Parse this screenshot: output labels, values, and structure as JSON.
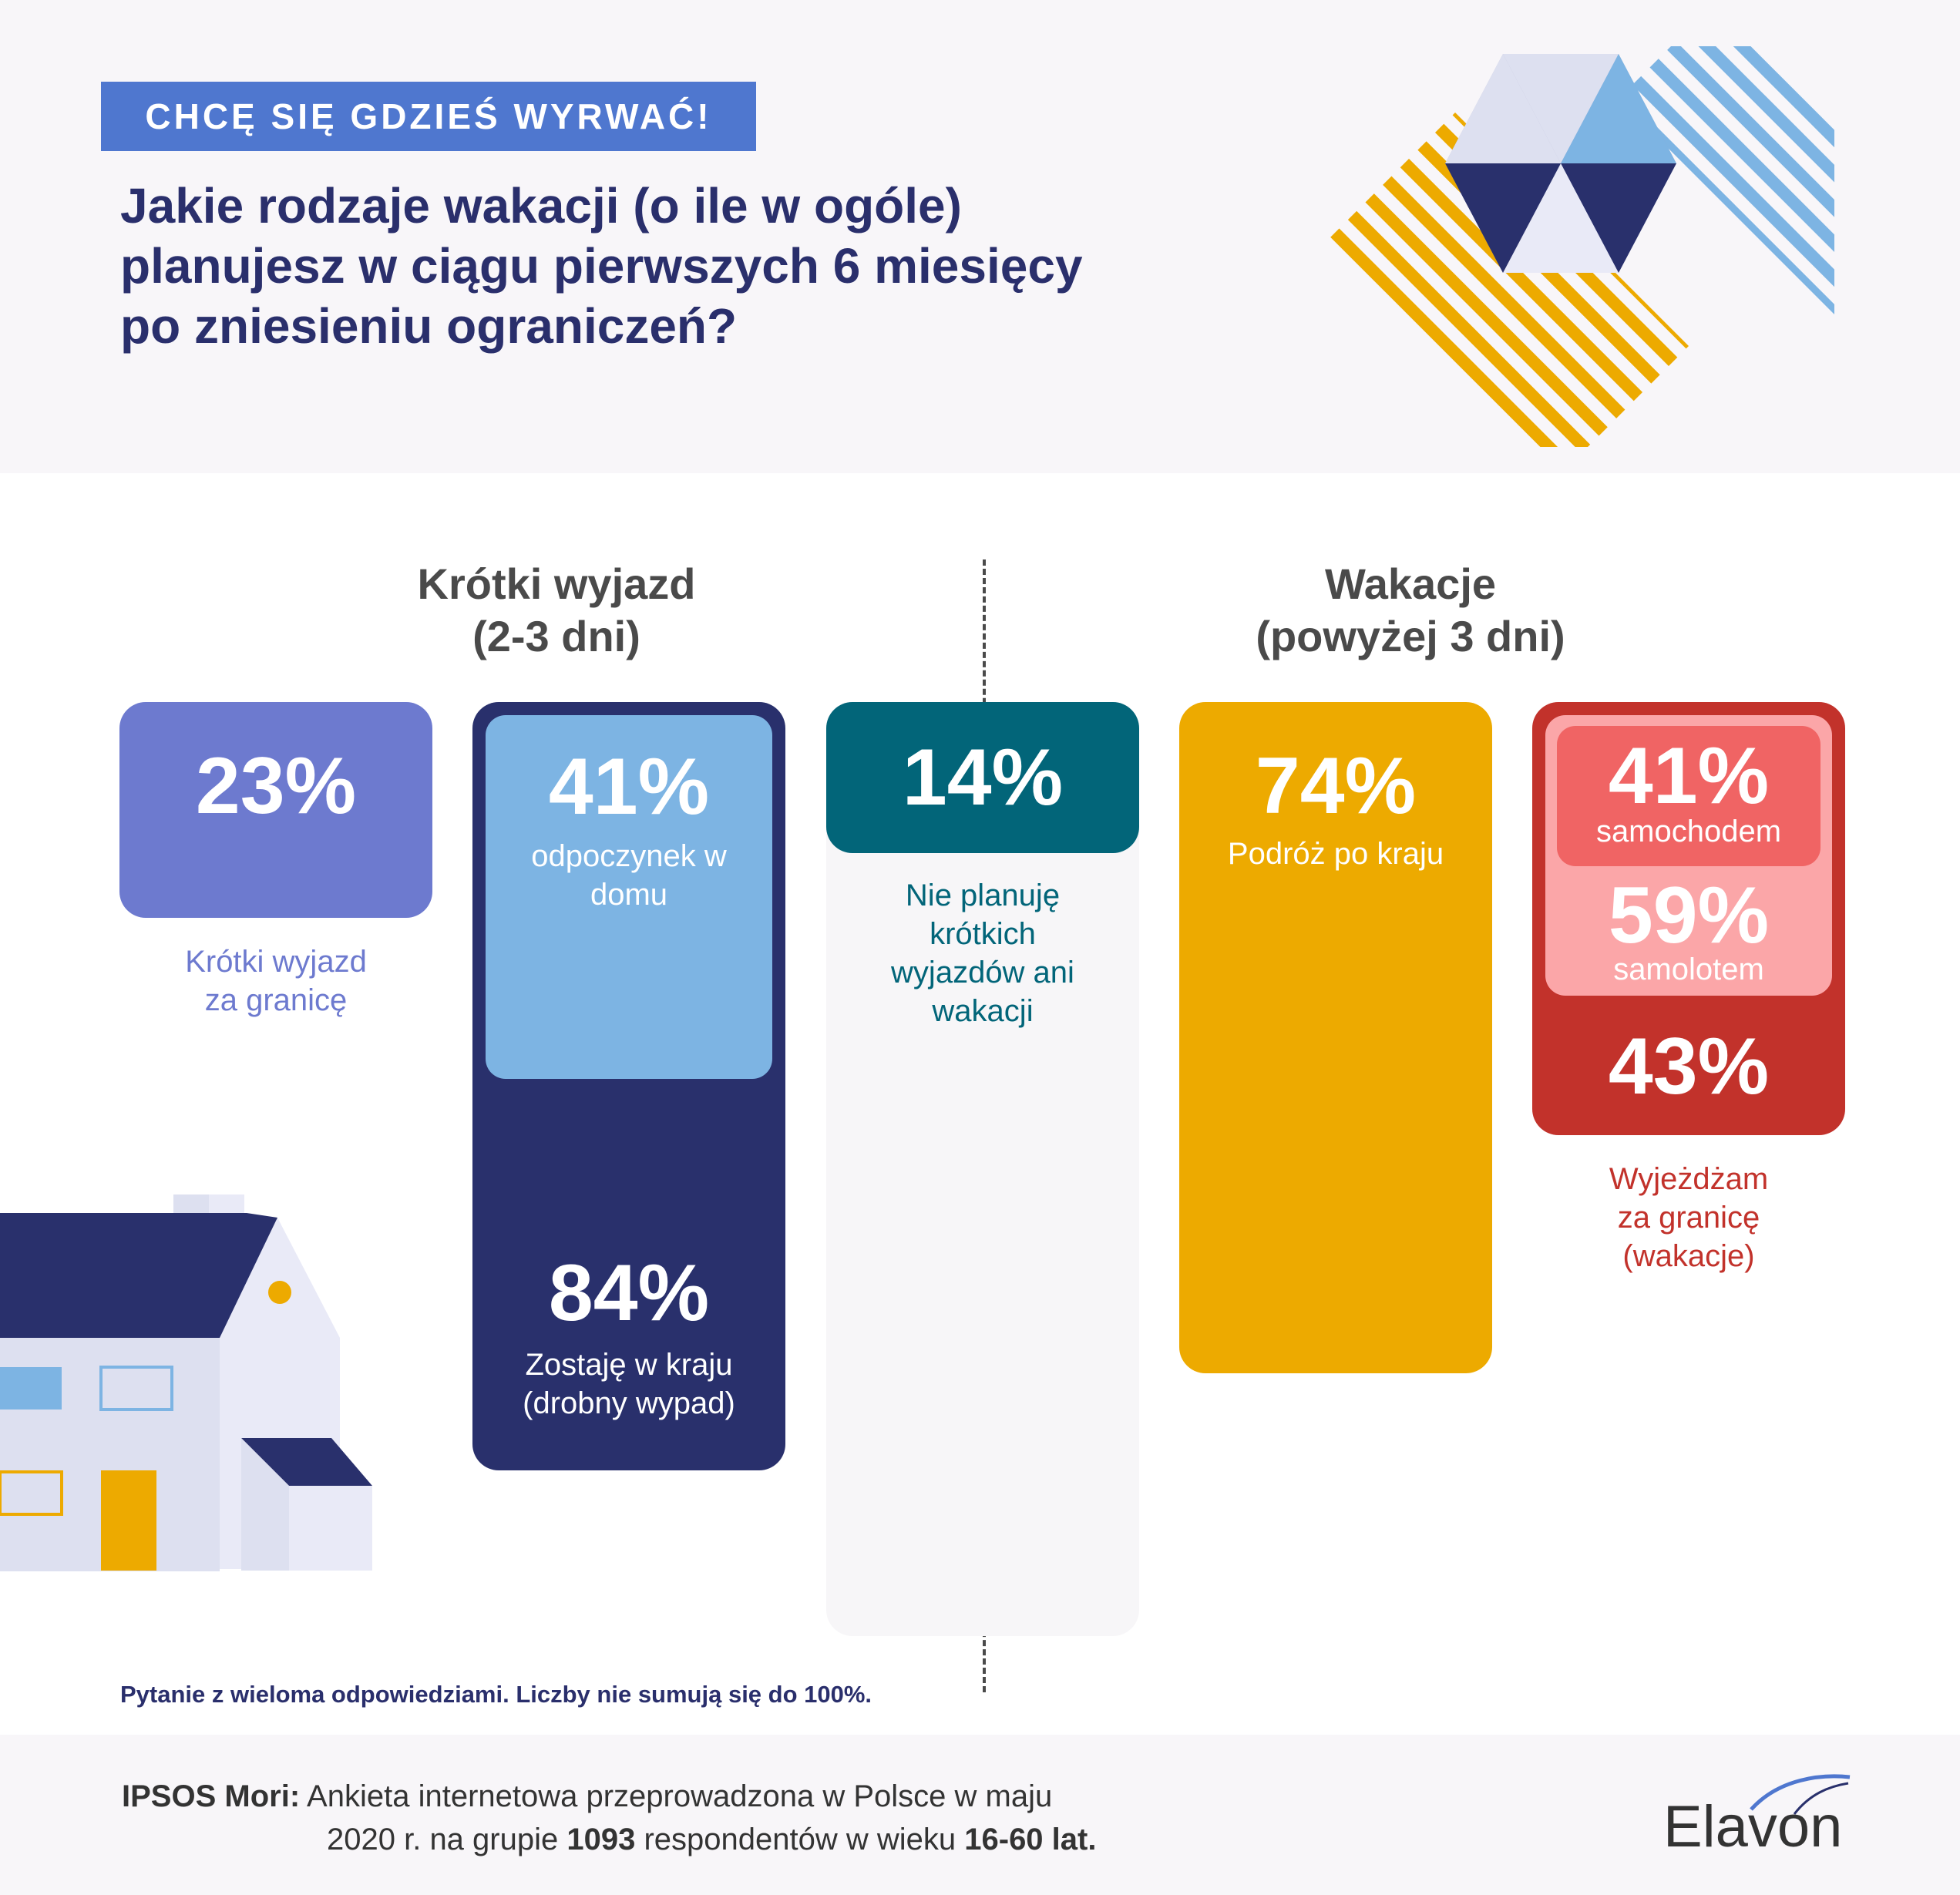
{
  "header": {
    "tag": "CHCĘ SIĘ GDZIEŚ WYRWAĆ!",
    "question_lines": [
      "Jakie rodzaje wakacji (o ile w ogóle)",
      "planujesz w ciągu pierwszych 6 miesięcy",
      "po zniesieniu ograniczeń?"
    ]
  },
  "sections": {
    "short": {
      "line1": "Krótki wyjazd",
      "line2": "(2-3 dni)"
    },
    "long": {
      "line1": "Wakacje",
      "line2": "(powyżej 3 dni)"
    }
  },
  "chart_data": {
    "type": "bar",
    "categories": [
      "Krótki wyjazd za granicę",
      "Zostaję w kraju (drobny wypad)",
      "odpoczynek w domu",
      "Nie planuję krótkich wyjazdów ani wakacji",
      "Podróż po kraju",
      "Wyjeżdżam za granicę (wakacje)",
      "samochodem",
      "samolotem"
    ],
    "values": [
      23,
      84,
      41,
      14,
      74,
      43,
      41,
      59
    ],
    "labels": {
      "short_abroad": {
        "value": "23%",
        "label_lines": [
          "Krótki wyjazd",
          "za granicę"
        ]
      },
      "domestic_short": {
        "value": "84%",
        "label_lines": [
          "Zostaję w kraju",
          "(drobny wypad)"
        ]
      },
      "rest_home": {
        "value": "41%",
        "label_lines": [
          "odpoczynek w",
          "domu"
        ]
      },
      "no_plans": {
        "value": "14%",
        "label_lines": [
          "Nie planuję",
          "krótkich",
          "wyjazdów ani",
          "wakacji"
        ]
      },
      "domestic_travel": {
        "value": "74%",
        "label_lines": [
          "Podróż po kraju"
        ]
      },
      "abroad": {
        "value": "43%",
        "label_lines": [
          "Wyjeżdżam",
          "za granicę",
          "(wakacje)"
        ]
      },
      "by_car": {
        "value": "41%",
        "label": "samochodem"
      },
      "by_plane": {
        "value": "59%",
        "label": "samolotem"
      }
    },
    "colors": {
      "short_abroad": "#6d7acf",
      "domestic_short": "#29306c",
      "rest_home": "#7db4e3",
      "no_plans": "#026579",
      "domestic_travel": "#edaa00",
      "abroad": "#c2322b",
      "by_car": "#f06464",
      "by_plane": "#fba6a8"
    }
  },
  "note": "Pytanie z wieloma odpowiedziami. Liczby nie sumują się do 100%.",
  "footer": {
    "source_bold": "IPSOS Mori:",
    "source_line1": " Ankieta internetowa przeprowadzona w Polsce w maju",
    "source_line2_a": "2020 r. na grupie ",
    "source_line2_b": "1093",
    "source_line2_c": " respondentów w wieku ",
    "source_line2_d": "16-60 lat.",
    "logo": "Elavon"
  }
}
